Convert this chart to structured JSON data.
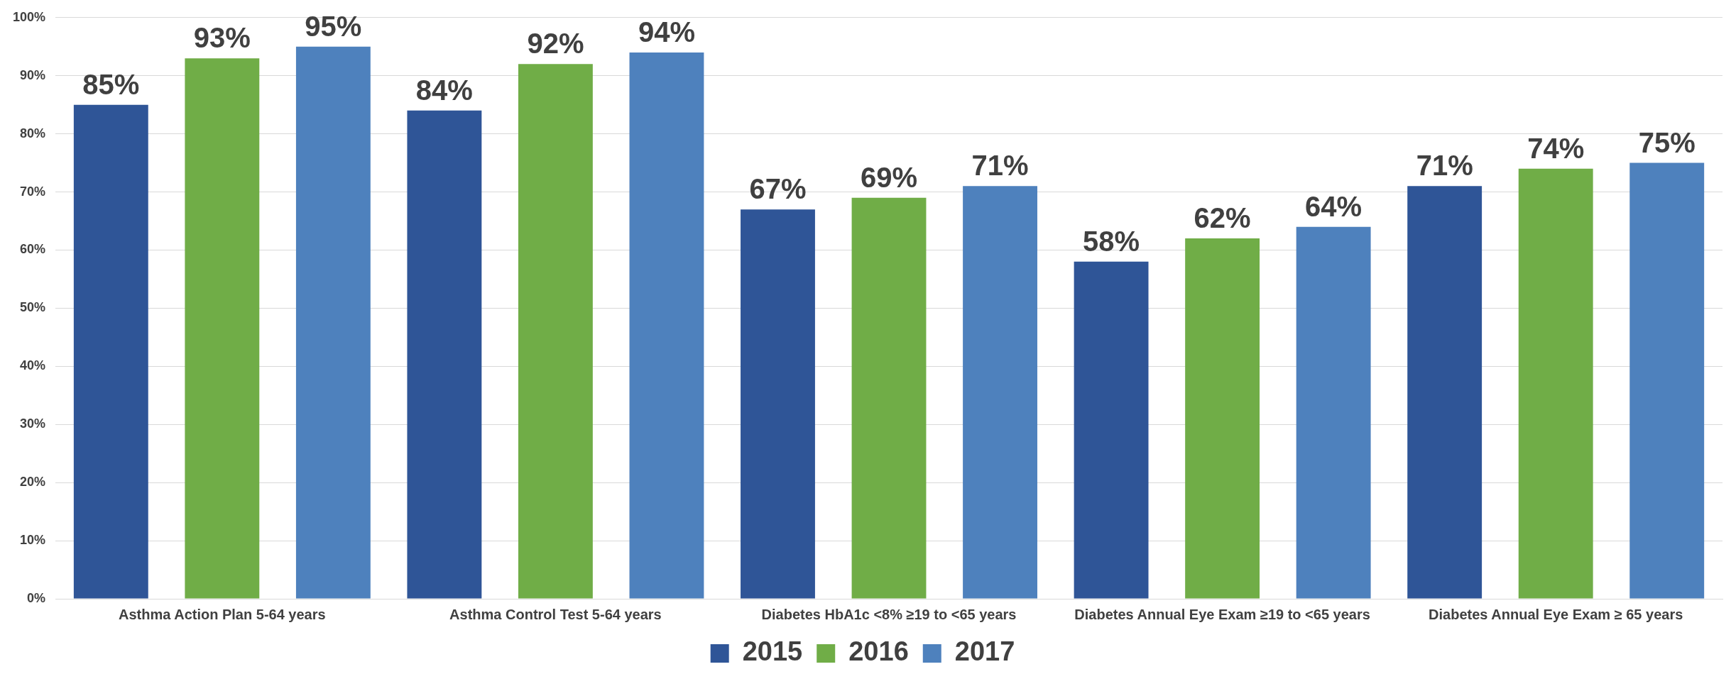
{
  "chart_data": {
    "type": "bar",
    "categories": [
      "Asthma Action Plan 5-64 years",
      "Asthma Control Test 5-64 years",
      "Diabetes HbA1c <8% ≥19 to <65 years",
      "Diabetes Annual Eye Exam ≥19 to <65 years",
      "Diabetes Annual Eye Exam ≥ 65 years"
    ],
    "series": [
      {
        "name": "2015",
        "color": "#2f5597",
        "values": [
          85,
          84,
          67,
          58,
          71
        ],
        "value_labels": [
          "85%",
          "84%",
          "67%",
          "58%",
          "71%"
        ]
      },
      {
        "name": "2016",
        "color": "#70ad47",
        "values": [
          93,
          92,
          69,
          62,
          74
        ],
        "value_labels": [
          "93%",
          "92%",
          "69%",
          "62%",
          "74%"
        ]
      },
      {
        "name": "2017",
        "color": "#4e81bd",
        "values": [
          95,
          94,
          71,
          64,
          75
        ],
        "value_labels": [
          "95%",
          "94%",
          "71%",
          "64%",
          "75%"
        ]
      }
    ],
    "ylim": [
      0,
      100
    ],
    "yticks": [
      {
        "value": 0,
        "label": "0%"
      },
      {
        "value": 10,
        "label": "10%"
      },
      {
        "value": 20,
        "label": "20%"
      },
      {
        "value": 30,
        "label": "30%"
      },
      {
        "value": 40,
        "label": "40%"
      },
      {
        "value": 50,
        "label": "50%"
      },
      {
        "value": 60,
        "label": "60%"
      },
      {
        "value": 70,
        "label": "70%"
      },
      {
        "value": 80,
        "label": "80%"
      },
      {
        "value": 90,
        "label": "90%"
      },
      {
        "value": 100,
        "label": "100%"
      }
    ],
    "grid": "y",
    "legend": "bottom"
  }
}
